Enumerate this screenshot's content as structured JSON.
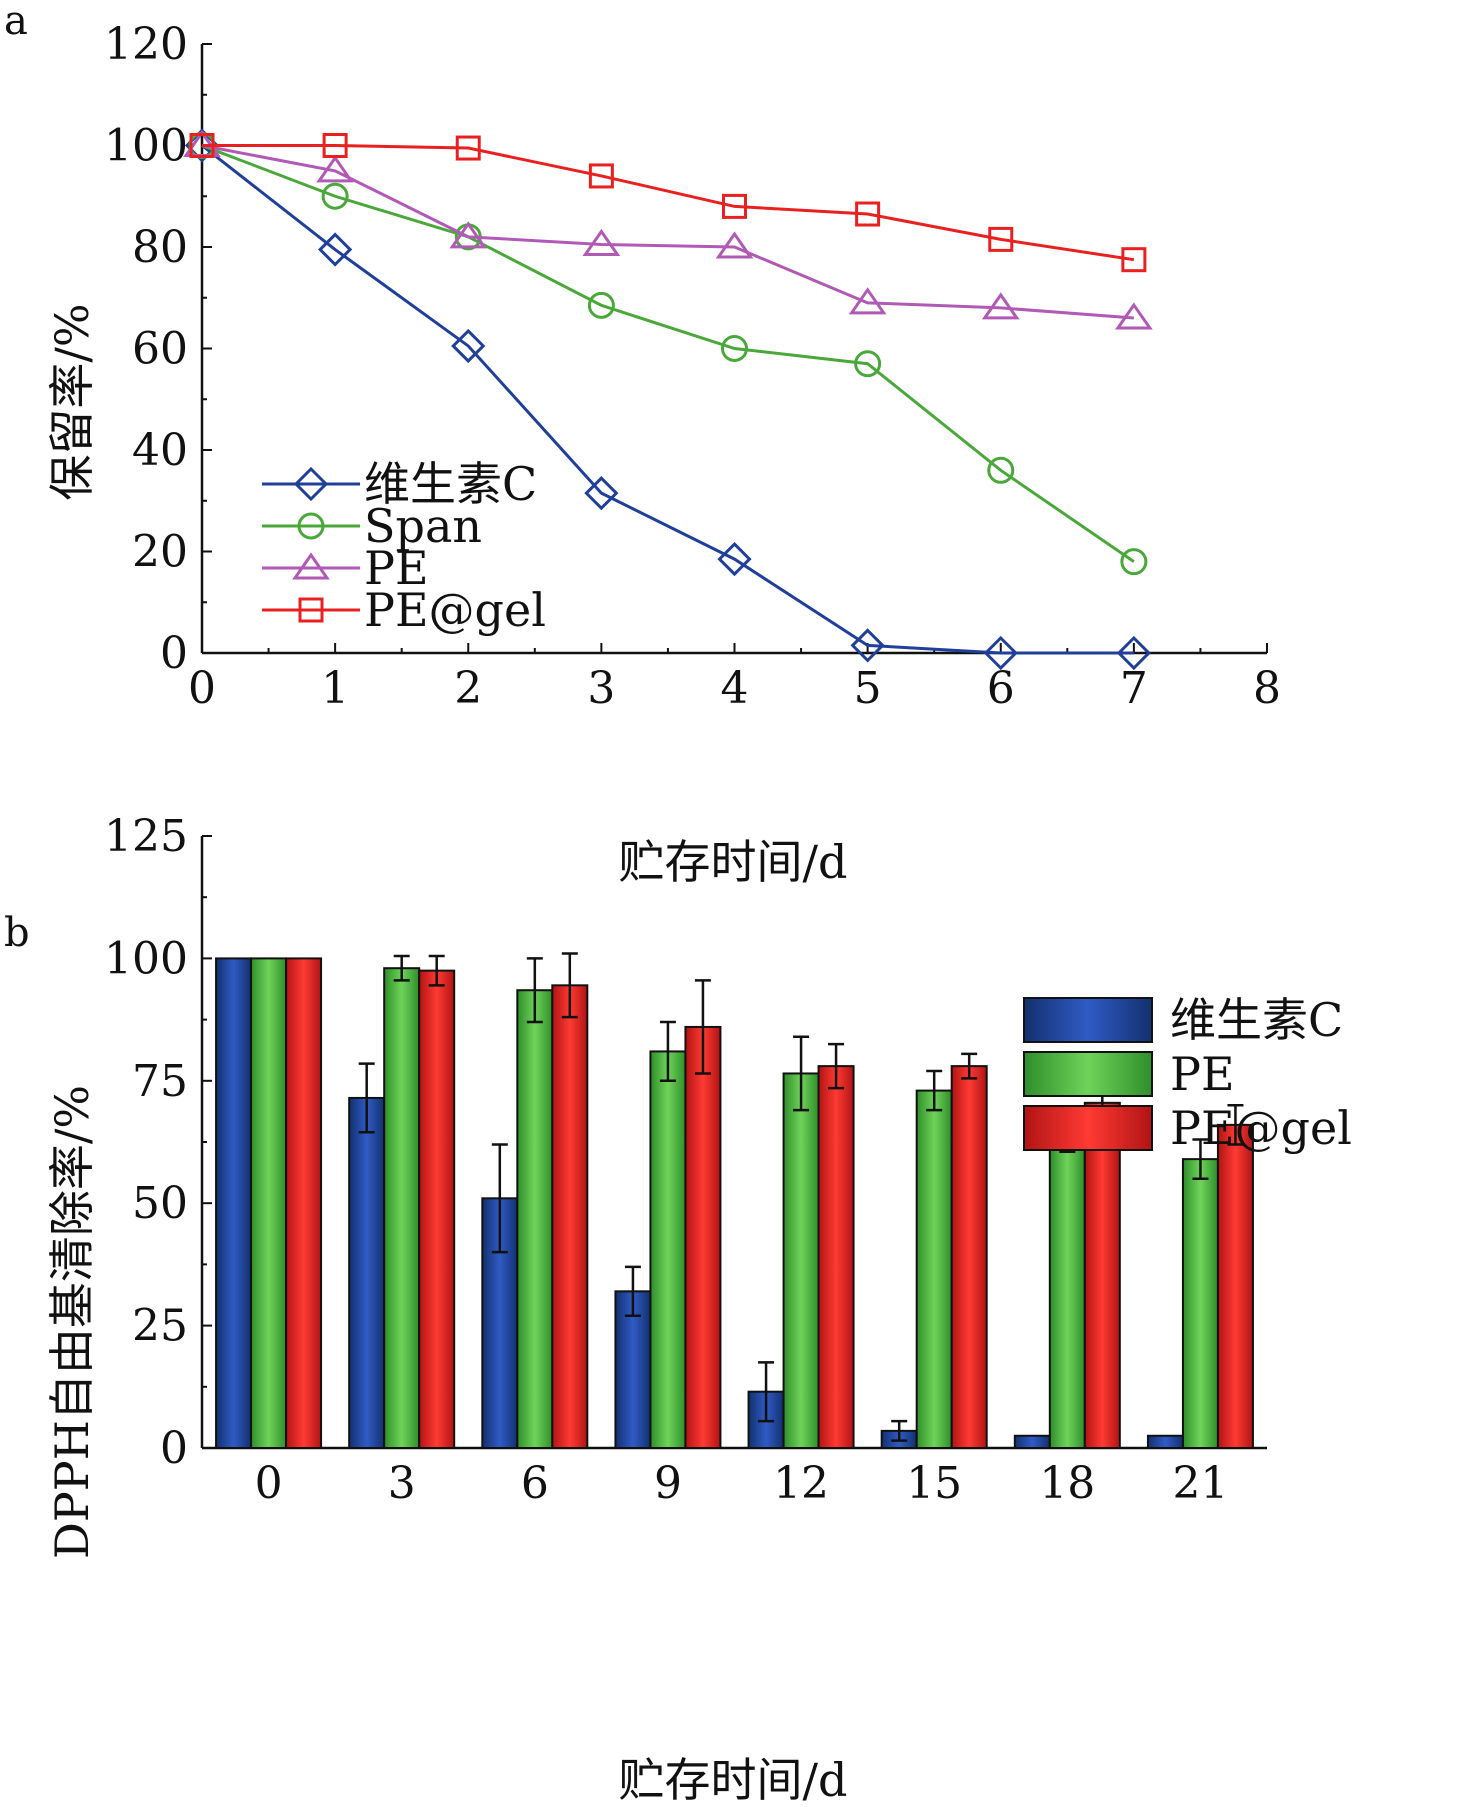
{
  "chart_data": [
    {
      "panel": "a",
      "type": "line",
      "xlabel": "贮存时间/d",
      "ylabel": "保留率/%",
      "xlim": [
        0,
        8
      ],
      "ylim": [
        0,
        120
      ],
      "x_ticks": [
        "0",
        "1",
        "2",
        "3",
        "4",
        "5",
        "6",
        "7",
        "8"
      ],
      "y_ticks": [
        "0",
        "20",
        "40",
        "60",
        "80",
        "100",
        "120"
      ],
      "x": [
        0,
        1,
        2,
        3,
        4,
        5,
        6,
        7
      ],
      "legend_position": "lower-left",
      "series": [
        {
          "name": "维生素C",
          "color": "#1f3f9a",
          "marker": "diamond",
          "values": [
            100,
            79.5,
            60.5,
            31.5,
            18.5,
            1.5,
            0,
            0
          ]
        },
        {
          "name": "Span",
          "color": "#4aa83a",
          "marker": "circle",
          "values": [
            100,
            90,
            82,
            68.5,
            60,
            57,
            36,
            18
          ]
        },
        {
          "name": "PE",
          "color": "#b05ab5",
          "marker": "triangle",
          "values": [
            100,
            95,
            82,
            80.5,
            80,
            69,
            68,
            66
          ]
        },
        {
          "name": "PE@gel",
          "color": "#e8201f",
          "marker": "square",
          "values": [
            100,
            100,
            99.5,
            94,
            88,
            86.5,
            81.5,
            77.5
          ]
        }
      ]
    },
    {
      "panel": "b",
      "type": "bar",
      "xlabel": "贮存时间/d",
      "ylabel": "DPPH自由基清除率/%",
      "ylim": [
        0,
        125
      ],
      "categories": [
        "0",
        "3",
        "6",
        "9",
        "12",
        "15",
        "18",
        "21"
      ],
      "y_ticks": [
        "0",
        "25",
        "50",
        "75",
        "100",
        "125"
      ],
      "legend_position": "top-right",
      "series": [
        {
          "name": "维生素C",
          "color": "#1f3f9a",
          "values": [
            100,
            71.5,
            51,
            32,
            11.5,
            3.5,
            2.5,
            2.5
          ],
          "errors": [
            0,
            7,
            11,
            5,
            6,
            2,
            0,
            0
          ]
        },
        {
          "name": "PE",
          "color": "#4ab83a",
          "values": [
            100,
            98,
            93.5,
            81,
            76.5,
            73,
            63.5,
            59
          ],
          "errors": [
            0,
            2.5,
            6.5,
            6,
            7.5,
            4,
            3,
            4
          ]
        },
        {
          "name": "PE@gel",
          "color": "#e8201f",
          "values": [
            100,
            97.5,
            94.5,
            86,
            78,
            78,
            70.5,
            66
          ],
          "errors": [
            0,
            3,
            6.5,
            9.5,
            4.5,
            2.5,
            3.5,
            4
          ]
        }
      ]
    }
  ],
  "panel_labels": {
    "a": "a",
    "b": "b"
  }
}
